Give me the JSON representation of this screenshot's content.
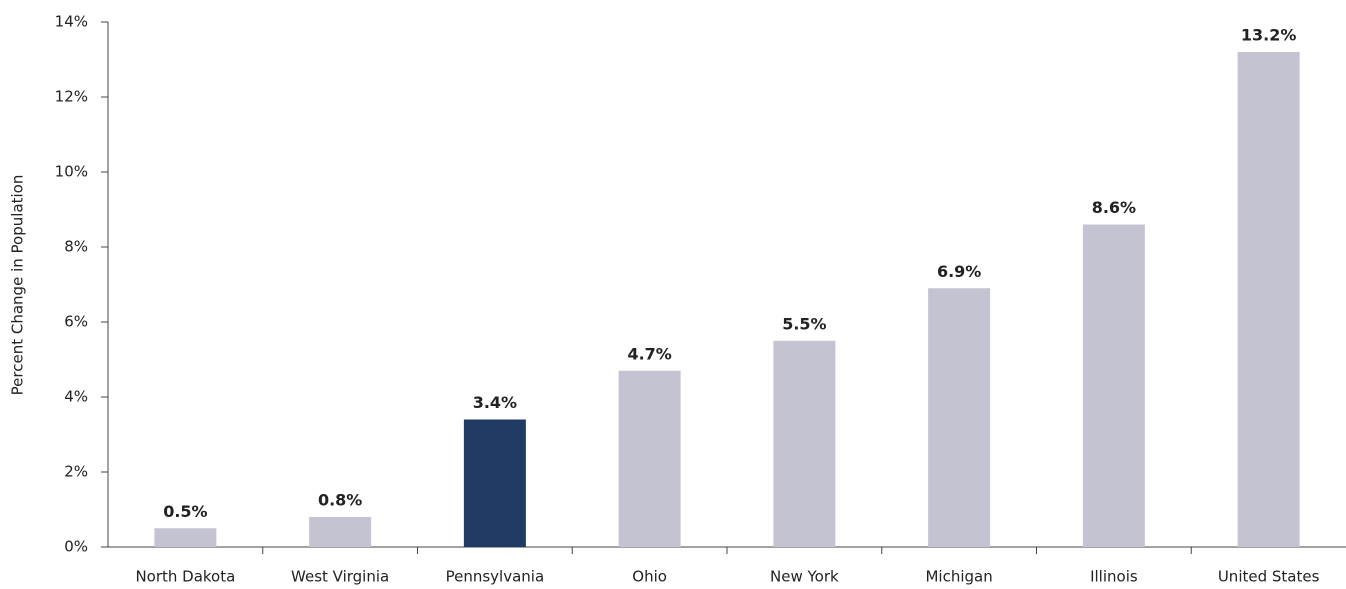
{
  "chart_data": {
    "type": "bar",
    "y_label": "Percent Change in Population",
    "categories": [
      "North Dakota",
      "West Virginia",
      "Pennsylvania",
      "Ohio",
      "New York",
      "Michigan",
      "Illinois",
      "United States"
    ],
    "values": [
      0.5,
      0.8,
      3.4,
      4.7,
      5.5,
      6.9,
      8.6,
      13.2
    ],
    "value_labels": [
      "0.5%",
      "0.8%",
      "3.4%",
      "4.7%",
      "5.5%",
      "6.9%",
      "8.6%",
      "13.2%"
    ],
    "colors": [
      "#c4c3d1",
      "#c4c3d1",
      "#1f3a63",
      "#c4c3d1",
      "#c4c3d1",
      "#c4c3d1",
      "#c4c3d1",
      "#c4c3d1"
    ],
    "ylim": [
      0,
      14
    ],
    "yticks": [
      {
        "value": 0,
        "label": "0%"
      },
      {
        "value": 2,
        "label": "2%"
      },
      {
        "value": 4,
        "label": "4%"
      },
      {
        "value": 6,
        "label": "6%"
      },
      {
        "value": 8,
        "label": "8%"
      },
      {
        "value": 10,
        "label": "10%"
      },
      {
        "value": 12,
        "label": "12%"
      },
      {
        "value": 14,
        "label": "14%"
      }
    ],
    "grid": false
  }
}
